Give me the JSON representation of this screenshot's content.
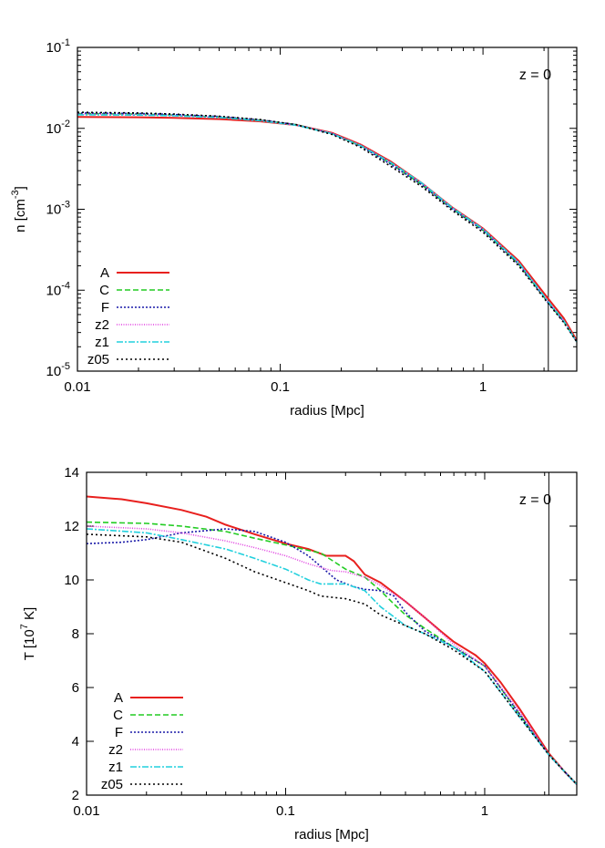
{
  "chart_data": [
    {
      "type": "line",
      "xlabel": "radius [Mpc]",
      "ylabel_main": "n [cm",
      "ylabel_sup": "-3",
      "ylabel_end": "]",
      "x_scale": "log",
      "y_scale": "log",
      "xlim": [
        0.01,
        2.9
      ],
      "ylim": [
        1e-05,
        0.1
      ],
      "x_ticks": [
        {
          "v": 0.01,
          "label": "0.01"
        },
        {
          "v": 0.1,
          "label": "0.1"
        },
        {
          "v": 1,
          "label": "1"
        }
      ],
      "y_ticks": [
        {
          "v": 1e-05,
          "base": "10",
          "exp": "-5"
        },
        {
          "v": 0.0001,
          "base": "10",
          "exp": "-4"
        },
        {
          "v": 0.001,
          "base": "10",
          "exp": "-3"
        },
        {
          "v": 0.01,
          "base": "10",
          "exp": "-2"
        },
        {
          "v": 0.1,
          "base": "10",
          "exp": "-1"
        }
      ],
      "annotation": "z = 0",
      "vline_x": 2.1,
      "legend_position": "bottom-left",
      "series": [
        {
          "name": "A",
          "color": "#e8201e",
          "dash": "",
          "x": [
            0.01,
            0.02,
            0.03,
            0.05,
            0.08,
            0.12,
            0.18,
            0.25,
            0.35,
            0.5,
            0.7,
            1.0,
            1.5,
            2.1,
            2.5,
            2.9
          ],
          "y": [
            0.0138,
            0.0137,
            0.0135,
            0.013,
            0.0122,
            0.011,
            0.0088,
            0.0063,
            0.0039,
            0.0021,
            0.00107,
            0.00058,
            0.00023,
            7.8e-05,
            4.5e-05,
            2.4e-05
          ]
        },
        {
          "name": "C",
          "color": "#22cc22",
          "dash": "6,3",
          "x": [
            0.01,
            0.02,
            0.03,
            0.05,
            0.08,
            0.12,
            0.18,
            0.25,
            0.35,
            0.5,
            0.7,
            1.0,
            1.5,
            2.1,
            2.5,
            2.9
          ],
          "y": [
            0.0152,
            0.015,
            0.0146,
            0.0138,
            0.0126,
            0.0111,
            0.0086,
            0.0061,
            0.0037,
            0.002,
            0.00103,
            0.00055,
            0.00021,
            7e-05,
            4.1e-05,
            2.3e-05
          ]
        },
        {
          "name": "F",
          "color": "#1a1aa8",
          "dash": "2,2",
          "x": [
            0.01,
            0.02,
            0.03,
            0.05,
            0.08,
            0.12,
            0.18,
            0.25,
            0.35,
            0.5,
            0.7,
            1.0,
            1.5,
            2.1,
            2.5,
            2.9
          ],
          "y": [
            0.0155,
            0.0153,
            0.0148,
            0.014,
            0.0127,
            0.0111,
            0.0086,
            0.006,
            0.0036,
            0.002,
            0.00102,
            0.00055,
            0.00021,
            7e-05,
            4.1e-05,
            2.3e-05
          ]
        },
        {
          "name": "z2",
          "color": "#e040e0",
          "dash": "1,1.5",
          "x": [
            0.01,
            0.02,
            0.03,
            0.05,
            0.08,
            0.12,
            0.18,
            0.25,
            0.35,
            0.5,
            0.7,
            1.0,
            1.5,
            2.1,
            2.5,
            2.9
          ],
          "y": [
            0.015,
            0.0148,
            0.0144,
            0.0137,
            0.0125,
            0.011,
            0.0087,
            0.0062,
            0.0038,
            0.0021,
            0.00106,
            0.00057,
            0.00022,
            7.2e-05,
            4.2e-05,
            2.3e-05
          ]
        },
        {
          "name": "z1",
          "color": "#22d0dd",
          "dash": "7,2,2,2",
          "x": [
            0.01,
            0.02,
            0.03,
            0.05,
            0.08,
            0.12,
            0.18,
            0.25,
            0.35,
            0.5,
            0.7,
            1.0,
            1.5,
            2.1,
            2.5,
            2.9
          ],
          "y": [
            0.0147,
            0.0146,
            0.0143,
            0.0136,
            0.0124,
            0.0109,
            0.0086,
            0.0061,
            0.0038,
            0.0021,
            0.00106,
            0.00057,
            0.00022,
            7.2e-05,
            4.2e-05,
            2.3e-05
          ]
        },
        {
          "name": "z05",
          "color": "#000000",
          "dash": "2,3",
          "x": [
            0.01,
            0.02,
            0.03,
            0.05,
            0.08,
            0.12,
            0.18,
            0.25,
            0.35,
            0.5,
            0.7,
            1.0,
            1.5,
            2.1,
            2.5,
            2.9
          ],
          "y": [
            0.0158,
            0.0155,
            0.015,
            0.0141,
            0.0128,
            0.0111,
            0.0084,
            0.0058,
            0.0034,
            0.0019,
            0.00098,
            0.00052,
            0.0002,
            6.8e-05,
            4e-05,
            2.3e-05
          ]
        }
      ]
    },
    {
      "type": "line",
      "xlabel": "radius [Mpc]",
      "ylabel_main": "T [10",
      "ylabel_sup": "7",
      "ylabel_end": " K]",
      "x_scale": "log",
      "y_scale": "linear",
      "xlim": [
        0.01,
        2.9
      ],
      "ylim": [
        2,
        14
      ],
      "x_ticks": [
        {
          "v": 0.01,
          "label": "0.01"
        },
        {
          "v": 0.1,
          "label": "0.1"
        },
        {
          "v": 1,
          "label": "1"
        }
      ],
      "y_ticks": [
        {
          "v": 2,
          "label": "2"
        },
        {
          "v": 4,
          "label": "4"
        },
        {
          "v": 6,
          "label": "6"
        },
        {
          "v": 8,
          "label": "8"
        },
        {
          "v": 10,
          "label": "10"
        },
        {
          "v": 12,
          "label": "12"
        },
        {
          "v": 14,
          "label": "14"
        }
      ],
      "annotation": "z = 0",
      "vline_x": 2.1,
      "legend_position": "bottom-left",
      "series": [
        {
          "name": "A",
          "color": "#e8201e",
          "dash": "",
          "x": [
            0.01,
            0.015,
            0.02,
            0.03,
            0.04,
            0.05,
            0.07,
            0.1,
            0.13,
            0.16,
            0.2,
            0.22,
            0.25,
            0.3,
            0.4,
            0.5,
            0.6,
            0.7,
            0.9,
            1.0,
            1.2,
            1.5,
            2.1,
            2.5,
            2.9
          ],
          "y": [
            13.1,
            13.0,
            12.85,
            12.6,
            12.35,
            12.05,
            11.7,
            11.35,
            11.15,
            10.9,
            10.9,
            10.7,
            10.2,
            9.9,
            9.2,
            8.6,
            8.1,
            7.7,
            7.2,
            6.9,
            6.2,
            5.2,
            3.55,
            2.9,
            2.4
          ]
        },
        {
          "name": "C",
          "color": "#22cc22",
          "dash": "6,3",
          "x": [
            0.01,
            0.02,
            0.03,
            0.05,
            0.07,
            0.1,
            0.13,
            0.15,
            0.2,
            0.25,
            0.3,
            0.35,
            0.4,
            0.5,
            0.7,
            1.0,
            1.5,
            2.1,
            2.5,
            2.9
          ],
          "y": [
            12.15,
            12.1,
            12.0,
            11.8,
            11.55,
            11.3,
            11.1,
            11.0,
            10.4,
            10.1,
            9.6,
            9.1,
            8.7,
            8.2,
            7.5,
            6.8,
            5.0,
            3.5,
            2.9,
            2.4
          ]
        },
        {
          "name": "F",
          "color": "#1a1aa8",
          "dash": "2,2",
          "x": [
            0.01,
            0.015,
            0.02,
            0.03,
            0.05,
            0.07,
            0.1,
            0.13,
            0.18,
            0.22,
            0.25,
            0.3,
            0.35,
            0.4,
            0.5,
            0.7,
            1.0,
            1.5,
            2.1,
            2.5,
            2.9
          ],
          "y": [
            11.35,
            11.4,
            11.5,
            11.75,
            11.9,
            11.8,
            11.4,
            10.9,
            10.0,
            9.75,
            9.65,
            9.6,
            9.4,
            8.8,
            8.1,
            7.5,
            6.8,
            5.0,
            3.5,
            2.9,
            2.4
          ]
        },
        {
          "name": "z2",
          "color": "#e040e0",
          "dash": "1,1.5",
          "x": [
            0.01,
            0.02,
            0.03,
            0.05,
            0.07,
            0.1,
            0.13,
            0.17,
            0.2,
            0.25,
            0.3,
            0.4,
            0.5,
            0.7,
            1.0,
            1.5,
            2.1,
            2.5,
            2.9
          ],
          "y": [
            12.0,
            11.9,
            11.75,
            11.45,
            11.2,
            10.9,
            10.6,
            10.35,
            10.3,
            10.1,
            9.8,
            9.2,
            8.6,
            7.6,
            6.8,
            5.1,
            3.5,
            2.9,
            2.4
          ]
        },
        {
          "name": "z1",
          "color": "#22d0dd",
          "dash": "7,2,2,2",
          "x": [
            0.01,
            0.02,
            0.03,
            0.05,
            0.07,
            0.1,
            0.13,
            0.15,
            0.2,
            0.25,
            0.3,
            0.4,
            0.5,
            0.7,
            1.0,
            1.5,
            2.1,
            2.5,
            2.9
          ],
          "y": [
            11.9,
            11.75,
            11.5,
            11.15,
            10.8,
            10.4,
            10.0,
            9.85,
            9.85,
            9.6,
            9.0,
            8.3,
            8.0,
            7.5,
            6.6,
            4.9,
            3.5,
            2.9,
            2.4
          ]
        },
        {
          "name": "z05",
          "color": "#000000",
          "dash": "2,3",
          "x": [
            0.01,
            0.02,
            0.03,
            0.05,
            0.07,
            0.1,
            0.13,
            0.15,
            0.2,
            0.25,
            0.3,
            0.4,
            0.5,
            0.7,
            1.0,
            1.5,
            2.1,
            2.5,
            2.9
          ],
          "y": [
            11.7,
            11.6,
            11.4,
            10.8,
            10.3,
            9.9,
            9.6,
            9.4,
            9.3,
            9.1,
            8.7,
            8.3,
            8.0,
            7.4,
            6.6,
            4.9,
            3.5,
            2.9,
            2.4
          ]
        }
      ]
    }
  ]
}
